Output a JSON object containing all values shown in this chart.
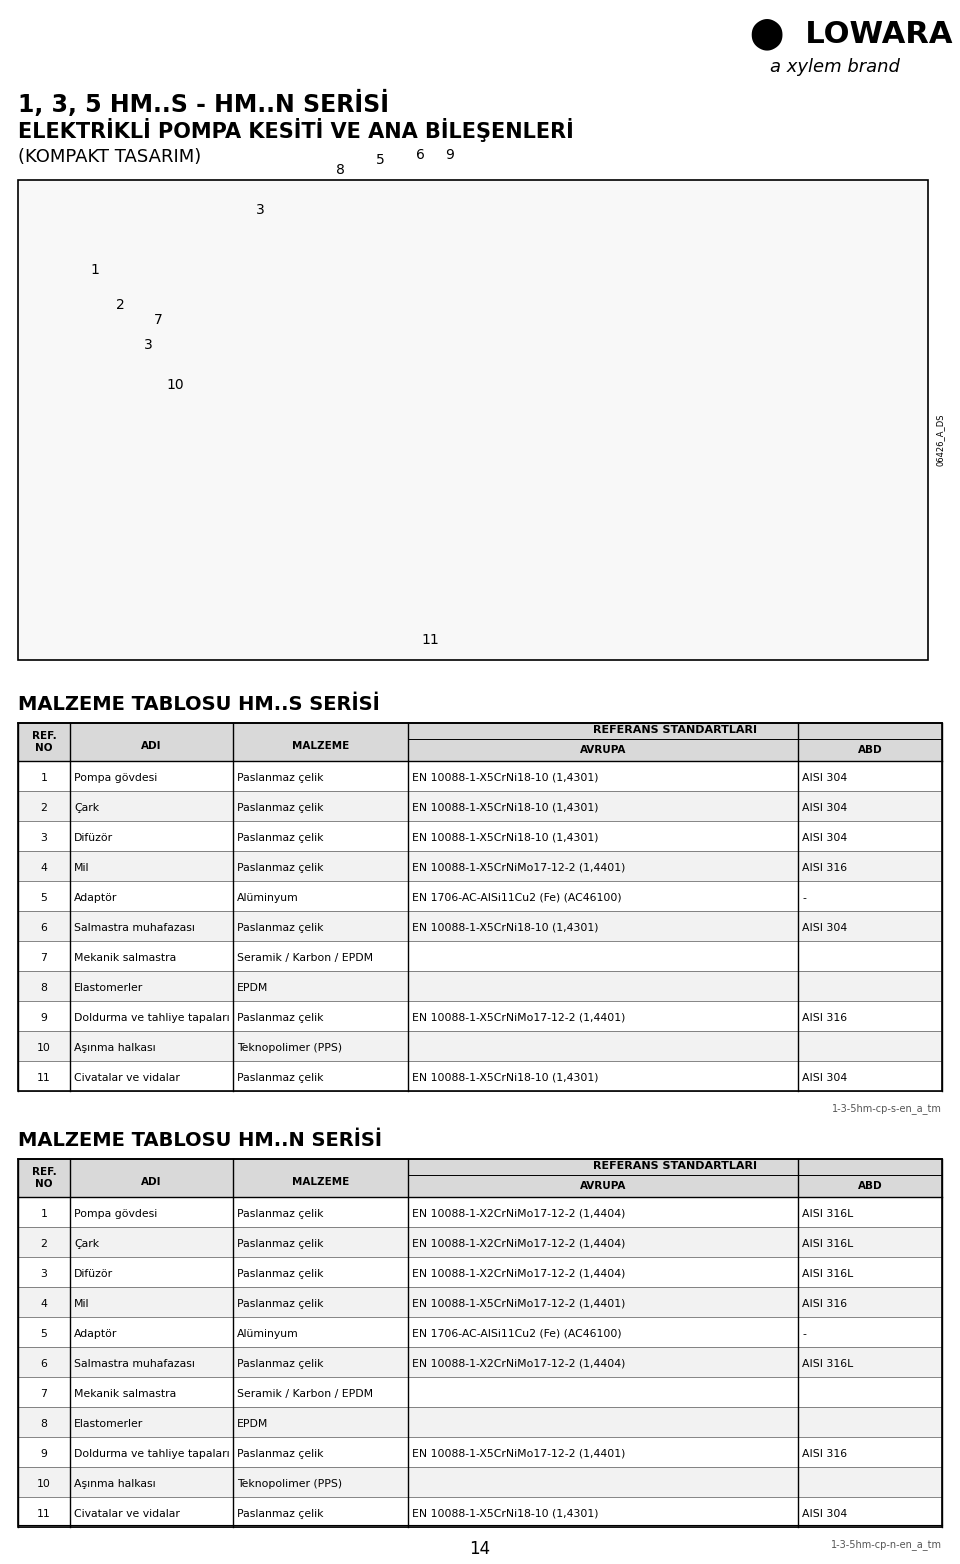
{
  "title_line1": "1, 3, 5 HM..S - HM..N SERİSİ",
  "title_line2": "ELEKTRİKLİ POMPA KESİTİ VE ANA BİLEŞENLERİ",
  "subtitle": "(KOMPAKT TASARIM)",
  "logo_text": "LOWARA",
  "logo_sub": "a xylem brand",
  "table1_title": "MALZEME TABLOSU HM..S SERİSİ",
  "table2_title": "MALZEME TABLOSU HM..N SERİSİ",
  "col_headers": [
    "REF.\nNO",
    "ADI",
    "MALZEME",
    "AVRUPA",
    "ABD"
  ],
  "col_header_top": "REFERANS STANDARTLARI",
  "footer1": "1-3-5hm-cp-s-en_a_tm",
  "footer2": "1-3-5hm-cp-n-en_a_tm",
  "page_num": "14",
  "table1_rows": [
    [
      "1",
      "Pompa gövdesi",
      "Paslanmaz çelik",
      "EN 10088-1-X5CrNi18-10 (1,4301)",
      "AISI 304"
    ],
    [
      "2",
      "Çark",
      "Paslanmaz çelik",
      "EN 10088-1-X5CrNi18-10 (1,4301)",
      "AISI 304"
    ],
    [
      "3",
      "Difüzör",
      "Paslanmaz çelik",
      "EN 10088-1-X5CrNi18-10 (1,4301)",
      "AISI 304"
    ],
    [
      "4",
      "Mil",
      "Paslanmaz çelik",
      "EN 10088-1-X5CrNiMo17-12-2 (1,4401)",
      "AISI 316"
    ],
    [
      "5",
      "Adaptör",
      "Alüminyum",
      "EN 1706-AC-AlSi11Cu2 (Fe) (AC46100)",
      "-"
    ],
    [
      "6",
      "Salmastra muhafazası",
      "Paslanmaz çelik",
      "EN 10088-1-X5CrNi18-10 (1,4301)",
      "AISI 304"
    ],
    [
      "7",
      "Mekanik salmastra",
      "Seramik / Karbon / EPDM",
      "",
      ""
    ],
    [
      "8",
      "Elastomerler",
      "EPDM",
      "",
      ""
    ],
    [
      "9",
      "Doldurma ve tahliye tapaları",
      "Paslanmaz çelik",
      "EN 10088-1-X5CrNiMo17-12-2 (1,4401)",
      "AISI 316"
    ],
    [
      "10",
      "Aşınma halkası",
      "Teknopolimer (PPS)",
      "",
      ""
    ],
    [
      "11",
      "Civatalar ve vidalar",
      "Paslanmaz çelik",
      "EN 10088-1-X5CrNi18-10 (1,4301)",
      "AISI 304"
    ]
  ],
  "table2_rows": [
    [
      "1",
      "Pompa gövdesi",
      "Paslanmaz çelik",
      "EN 10088-1-X2CrNiMo17-12-2 (1,4404)",
      "AISI 316L"
    ],
    [
      "2",
      "Çark",
      "Paslanmaz çelik",
      "EN 10088-1-X2CrNiMo17-12-2 (1,4404)",
      "AISI 316L"
    ],
    [
      "3",
      "Difüzör",
      "Paslanmaz çelik",
      "EN 10088-1-X2CrNiMo17-12-2 (1,4404)",
      "AISI 316L"
    ],
    [
      "4",
      "Mil",
      "Paslanmaz çelik",
      "EN 10088-1-X5CrNiMo17-12-2 (1,4401)",
      "AISI 316"
    ],
    [
      "5",
      "Adaptör",
      "Alüminyum",
      "EN 1706-AC-AlSi11Cu2 (Fe) (AC46100)",
      "-"
    ],
    [
      "6",
      "Salmastra muhafazası",
      "Paslanmaz çelik",
      "EN 10088-1-X2CrNiMo17-12-2 (1,4404)",
      "AISI 316L"
    ],
    [
      "7",
      "Mekanik salmastra",
      "Seramik / Karbon / EPDM",
      "",
      ""
    ],
    [
      "8",
      "Elastomerler",
      "EPDM",
      "",
      ""
    ],
    [
      "9",
      "Doldurma ve tahliye tapaları",
      "Paslanmaz çelik",
      "EN 10088-1-X5CrNiMo17-12-2 (1,4401)",
      "AISI 316"
    ],
    [
      "10",
      "Aşınma halkası",
      "Teknopolimer (PPS)",
      "",
      ""
    ],
    [
      "11",
      "Civatalar ve vidalar",
      "Paslanmaz çelik",
      "EN 10088-1-X5CrNi18-10 (1,4301)",
      "AISI 304"
    ]
  ],
  "bg_color": "#ffffff",
  "table_border_color": "#000000",
  "header_bg": "#d9d9d9",
  "row_alt_bg": "#f2f2f2",
  "row_bg": "#ffffff",
  "text_color": "#000000",
  "title_color": "#000000"
}
